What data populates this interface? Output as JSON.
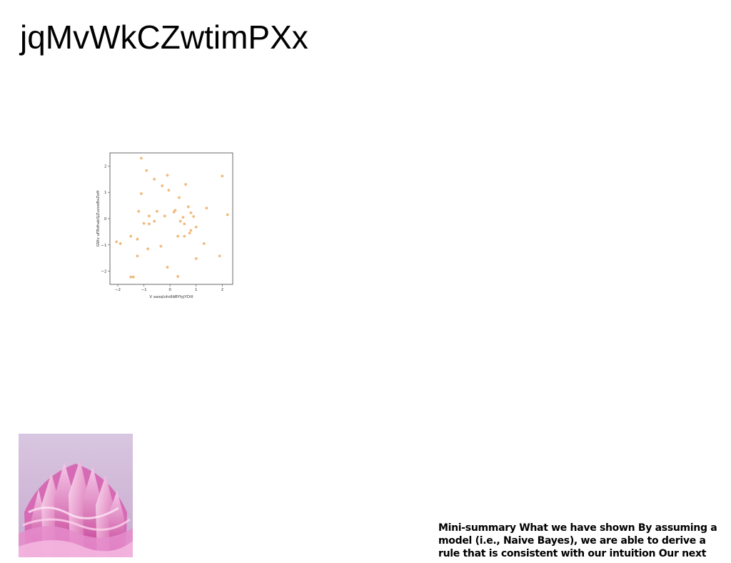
{
  "slide": {
    "title": "jqMvWkCZwtimPXx",
    "summary": "Mini-summary What we have shown By assuming a\nmodel (i.e., Naive Bayes), we are able to derive a\nrule that is consistent with our intuition Our next"
  },
  "photo": {
    "description_icon": "pink-sculpture-image",
    "background_color": "#d7c3df",
    "accent_color": "#e079c6"
  },
  "chart_data": {
    "type": "scatter",
    "xlabel": "V aasqluhdlbBYfyjYDiIl",
    "ylabel": "GWv uFRdhabSjZuzzeBxZoH",
    "xlim": [
      -2.3,
      2.4
    ],
    "ylim": [
      -2.5,
      2.5
    ],
    "xticks": [
      -2,
      -1,
      0,
      1,
      2
    ],
    "yticks": [
      -2,
      -1,
      0,
      1,
      2
    ],
    "xtick_labels": [
      "−2",
      "−1",
      "0",
      "1",
      "2"
    ],
    "ytick_labels": [
      "−2",
      "−1",
      "0",
      "1",
      "2"
    ],
    "point_color": "#f0b36f",
    "points": [
      [
        -1.1,
        2.3
      ],
      [
        -0.9,
        1.83
      ],
      [
        -0.6,
        1.5
      ],
      [
        -0.1,
        1.65
      ],
      [
        2.0,
        1.62
      ],
      [
        -0.3,
        1.25
      ],
      [
        0.6,
        1.3
      ],
      [
        -0.05,
        1.08
      ],
      [
        -1.1,
        0.95
      ],
      [
        0.35,
        0.8
      ],
      [
        0.7,
        0.45
      ],
      [
        1.4,
        0.4
      ],
      [
        -1.2,
        0.28
      ],
      [
        -0.5,
        0.28
      ],
      [
        0.15,
        0.25
      ],
      [
        0.2,
        0.32
      ],
      [
        0.8,
        0.22
      ],
      [
        -0.8,
        0.1
      ],
      [
        -0.2,
        0.1
      ],
      [
        0.9,
        0.08
      ],
      [
        0.5,
        0.05
      ],
      [
        2.2,
        0.15
      ],
      [
        0.4,
        -0.1
      ],
      [
        -0.6,
        -0.1
      ],
      [
        -1.0,
        -0.18
      ],
      [
        -0.8,
        -0.2
      ],
      [
        0.55,
        -0.2
      ],
      [
        1.0,
        -0.32
      ],
      [
        0.8,
        -0.45
      ],
      [
        0.75,
        -0.55
      ],
      [
        0.3,
        -0.67
      ],
      [
        0.55,
        -0.67
      ],
      [
        -1.5,
        -0.67
      ],
      [
        -1.25,
        -0.78
      ],
      [
        1.3,
        -0.95
      ],
      [
        -0.35,
        -1.05
      ],
      [
        -2.05,
        -0.88
      ],
      [
        -1.9,
        -0.95
      ],
      [
        -0.85,
        -1.15
      ],
      [
        -1.25,
        -1.42
      ],
      [
        1.9,
        -1.42
      ],
      [
        1.0,
        -1.52
      ],
      [
        -0.1,
        -1.85
      ],
      [
        0.3,
        -2.2
      ],
      [
        -1.5,
        -2.22
      ],
      [
        -1.4,
        -2.22
      ]
    ]
  }
}
